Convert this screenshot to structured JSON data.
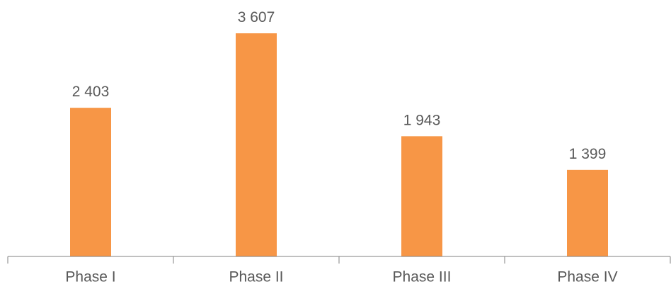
{
  "chart_data": {
    "type": "bar",
    "categories": [
      "Phase I",
      "Phase II",
      "Phase III",
      "Phase IV"
    ],
    "values": [
      2403,
      3607,
      1943,
      1399
    ],
    "data_labels": [
      "2 403",
      "3 607",
      "1 943",
      "1 399"
    ],
    "title": "",
    "xlabel": "",
    "ylabel": "",
    "ylim": [
      0,
      3607
    ],
    "grid": false,
    "legend": "none",
    "bar_color": "#F79646",
    "axis_color": "#808080",
    "text_color": "#595959"
  }
}
